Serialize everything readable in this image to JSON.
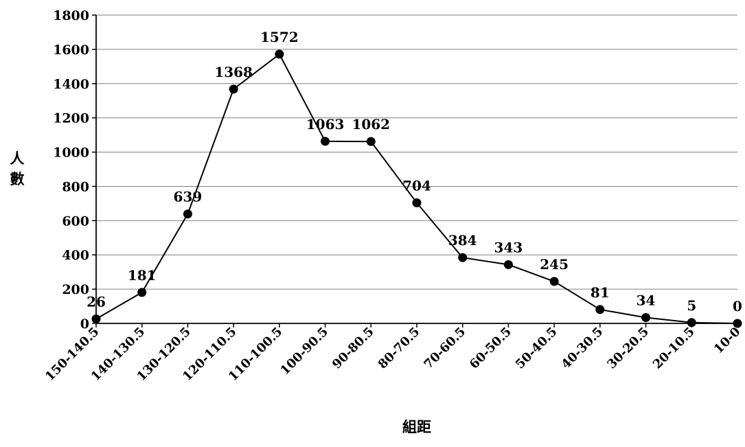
{
  "chart_data": {
    "type": "line",
    "title": "",
    "xlabel": "組距",
    "ylabel": "人數",
    "categories": [
      "150-140.5",
      "140-130.5",
      "130-120.5",
      "120-110.5",
      "110-100.5",
      "100-90.5",
      "90-80.5",
      "80-70.5",
      "70-60.5",
      "60-50.5",
      "50-40.5",
      "40-30.5",
      "30-20.5",
      "20-10.5",
      "10-0"
    ],
    "series": [
      {
        "values": [
          26,
          181,
          639,
          1368,
          1572,
          1063,
          1062,
          704,
          384,
          343,
          245,
          81,
          34,
          5,
          0
        ]
      }
    ],
    "data_labels": [
      "26",
      "181",
      "639",
      "1368",
      "1572",
      "1063",
      "1062",
      "704",
      "384",
      "343",
      "245",
      "81",
      "34",
      "5",
      "0"
    ],
    "yticks": [
      "0",
      "200",
      "400",
      "600",
      "800",
      "1000",
      "1200",
      "1400",
      "1600",
      "1800"
    ],
    "ylim": [
      0,
      1800
    ],
    "grid": "horizontal",
    "line_color": "#000000",
    "marker_color": "#000000",
    "gridline_color": "#808080",
    "legend": "none"
  }
}
